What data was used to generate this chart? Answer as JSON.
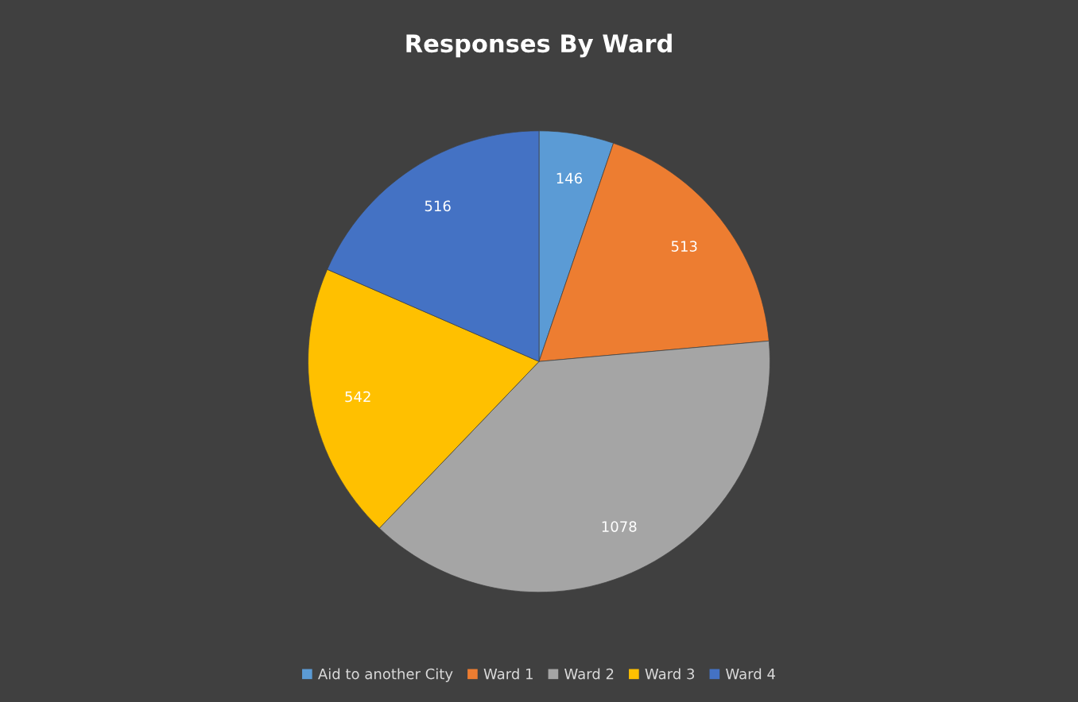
{
  "chart_data": {
    "type": "pie",
    "title": "Responses By Ward",
    "categories": [
      "Aid to another City",
      "Ward 1",
      "Ward 2",
      "Ward 3",
      "Ward 4"
    ],
    "values": [
      146,
      513,
      1078,
      542,
      516
    ],
    "colors": [
      "#5b9bd5",
      "#ed7d31",
      "#a5a5a5",
      "#ffc000",
      "#4472c4"
    ],
    "data_labels": true,
    "legend": "bottom"
  }
}
